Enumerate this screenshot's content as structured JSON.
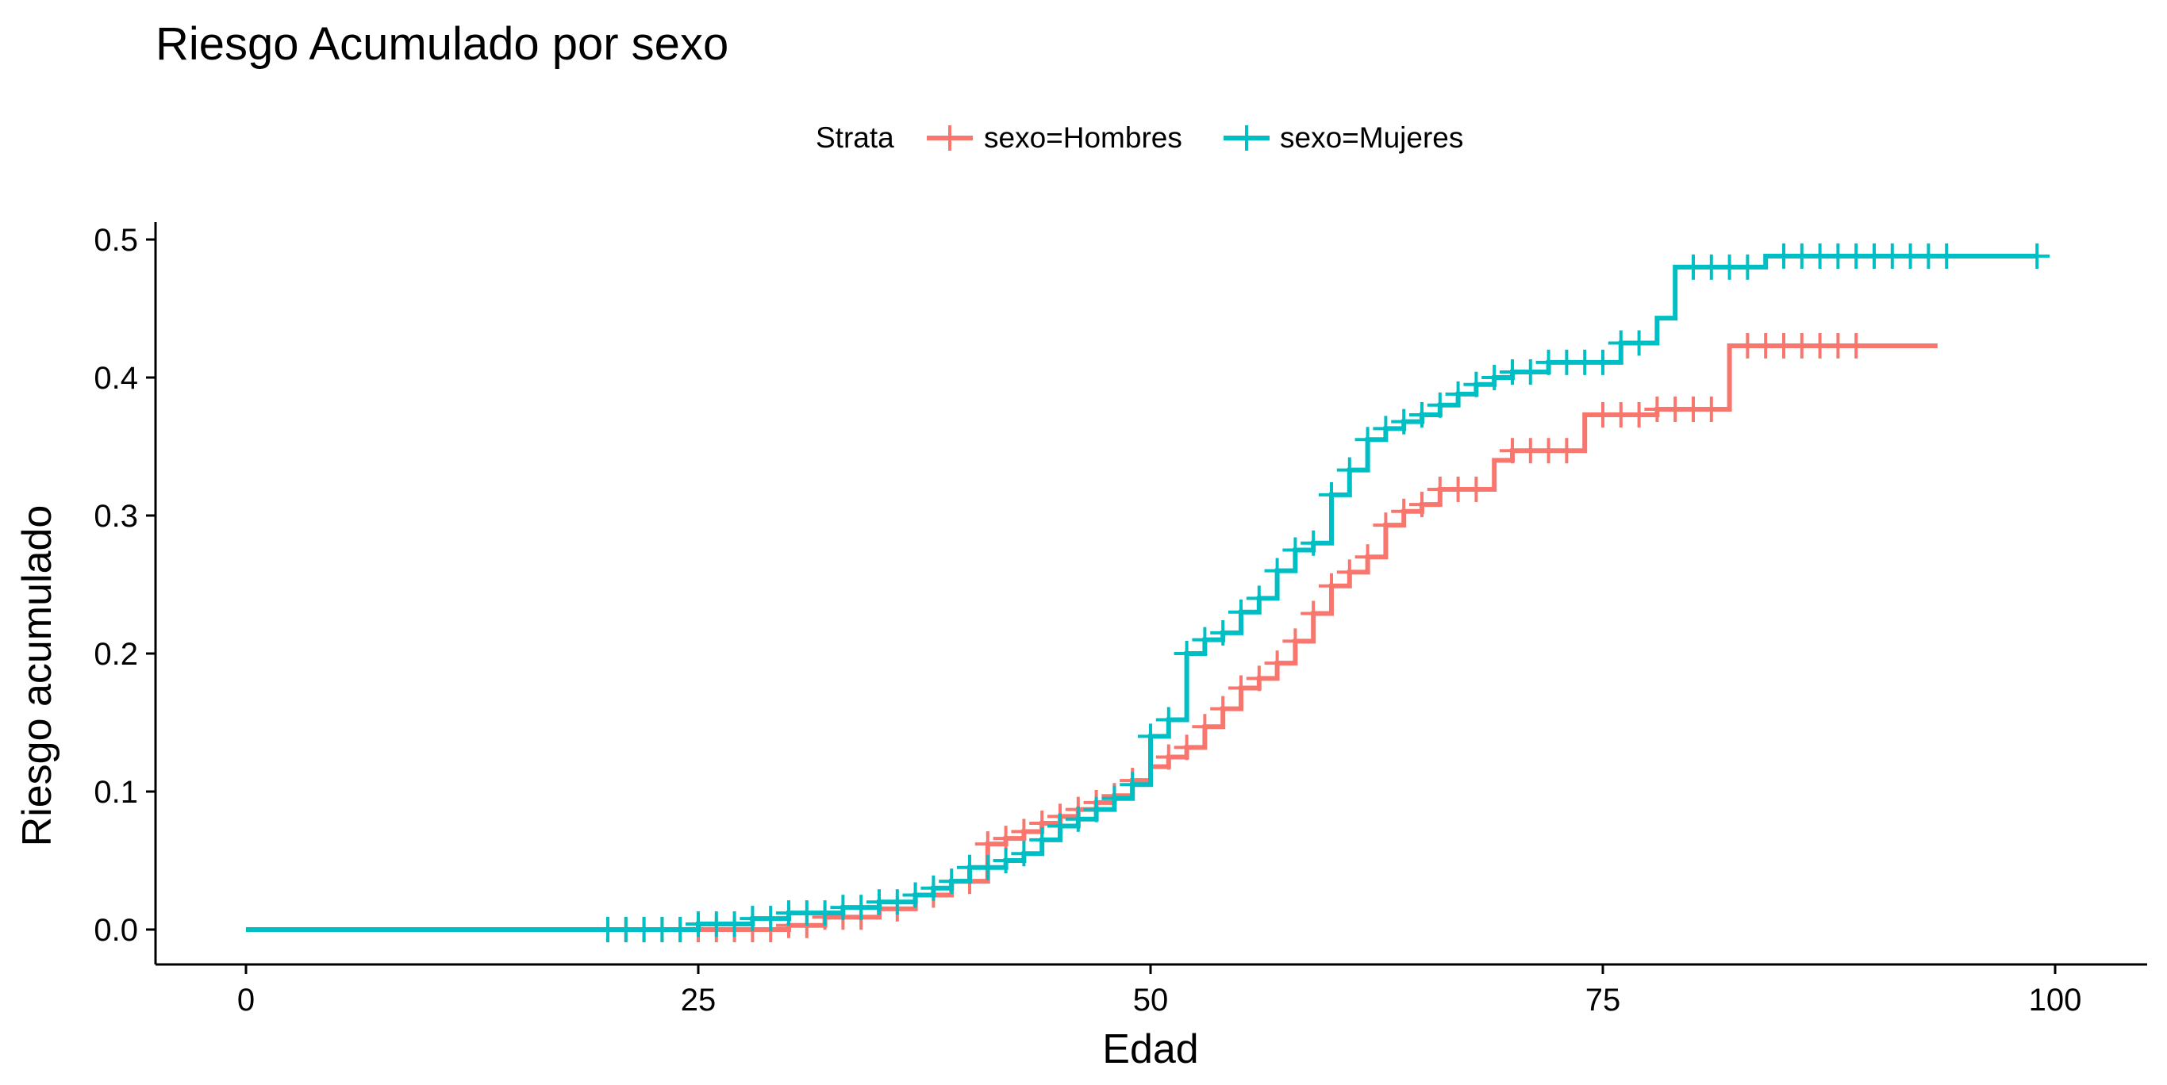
{
  "chart_data": {
    "type": "line",
    "step": true,
    "title": "Riesgo Acumulado por sexo",
    "xlabel": "Edad",
    "ylabel": "Riesgo acumulado",
    "xlim": [
      0,
      100
    ],
    "ylim": [
      0,
      0.5
    ],
    "xticks": [
      0,
      25,
      50,
      75,
      100
    ],
    "yticks": [
      0.0,
      0.1,
      0.2,
      0.3,
      0.4,
      0.5
    ],
    "xtick_labels": [
      "0",
      "25",
      "50",
      "75",
      "100"
    ],
    "ytick_labels": [
      "0.0",
      "0.1",
      "0.2",
      "0.3",
      "0.4",
      "0.5"
    ],
    "grid": false,
    "legend": {
      "position": "top",
      "title": "Strata",
      "entries": [
        "sexo=Hombres",
        "sexo=Mujeres"
      ]
    },
    "series": [
      {
        "name": "sexo=Hombres",
        "color": "#F8766D",
        "x": [
          0,
          30,
          32,
          35,
          37,
          39,
          41,
          42,
          43,
          44,
          45,
          46,
          47,
          48,
          49,
          50,
          51,
          52,
          53,
          54,
          55,
          56,
          57,
          58,
          59,
          60,
          61,
          62,
          63,
          64,
          65,
          66,
          69,
          70,
          74,
          78,
          82,
          93.5
        ],
        "y": [
          0,
          0.003,
          0.009,
          0.015,
          0.025,
          0.035,
          0.062,
          0.066,
          0.071,
          0.077,
          0.082,
          0.087,
          0.092,
          0.097,
          0.108,
          0.118,
          0.125,
          0.132,
          0.147,
          0.16,
          0.175,
          0.182,
          0.193,
          0.209,
          0.229,
          0.249,
          0.259,
          0.27,
          0.293,
          0.303,
          0.308,
          0.319,
          0.34,
          0.347,
          0.373,
          0.377,
          0.423,
          0.423
        ],
        "censor_x": [
          20,
          21,
          22,
          23,
          24,
          25,
          26,
          27,
          28,
          29,
          30,
          31,
          32,
          33,
          34,
          36,
          37,
          38,
          40,
          41,
          42,
          43,
          44,
          45,
          46,
          47,
          48,
          49,
          51,
          52,
          53,
          54,
          55,
          56,
          57,
          58,
          59,
          60,
          61,
          62,
          63,
          64,
          65,
          66,
          67,
          68,
          70,
          71,
          72,
          73,
          75,
          76,
          77,
          78,
          79,
          80,
          81,
          83,
          84,
          85,
          86,
          87,
          88,
          89
        ]
      },
      {
        "name": "sexo=Mujeres",
        "color": "#00BFC4",
        "x": [
          0,
          25,
          28,
          30,
          33,
          35,
          37,
          38,
          39,
          40,
          42,
          43,
          44,
          45,
          46,
          47,
          48,
          49,
          50,
          51,
          52,
          53,
          54,
          55,
          56,
          57,
          58,
          59,
          60,
          61,
          62,
          63,
          64,
          65,
          66,
          67,
          68,
          69,
          70,
          72,
          76,
          78,
          79,
          84,
          99
        ],
        "y": [
          0,
          0.004,
          0.008,
          0.012,
          0.016,
          0.02,
          0.025,
          0.03,
          0.035,
          0.045,
          0.05,
          0.055,
          0.065,
          0.075,
          0.08,
          0.087,
          0.095,
          0.105,
          0.14,
          0.152,
          0.2,
          0.21,
          0.215,
          0.23,
          0.24,
          0.26,
          0.275,
          0.28,
          0.315,
          0.333,
          0.355,
          0.363,
          0.368,
          0.373,
          0.38,
          0.388,
          0.395,
          0.4,
          0.404,
          0.411,
          0.425,
          0.443,
          0.48,
          0.488,
          0.488
        ],
        "censor_x": [
          20,
          21,
          22,
          23,
          24,
          25,
          26,
          27,
          28,
          29,
          30,
          31,
          32,
          33,
          34,
          35,
          36,
          37,
          38,
          39,
          40,
          41,
          42,
          43,
          44,
          45,
          46,
          47,
          48,
          49,
          50,
          51,
          52,
          53,
          54,
          55,
          56,
          57,
          58,
          59,
          60,
          61,
          62,
          63,
          64,
          65,
          66,
          67,
          68,
          69,
          70,
          71,
          72,
          73,
          74,
          75,
          76,
          77,
          80,
          81,
          82,
          83,
          85,
          86,
          87,
          88,
          89,
          90,
          91,
          92,
          93,
          94,
          99
        ]
      }
    ]
  }
}
